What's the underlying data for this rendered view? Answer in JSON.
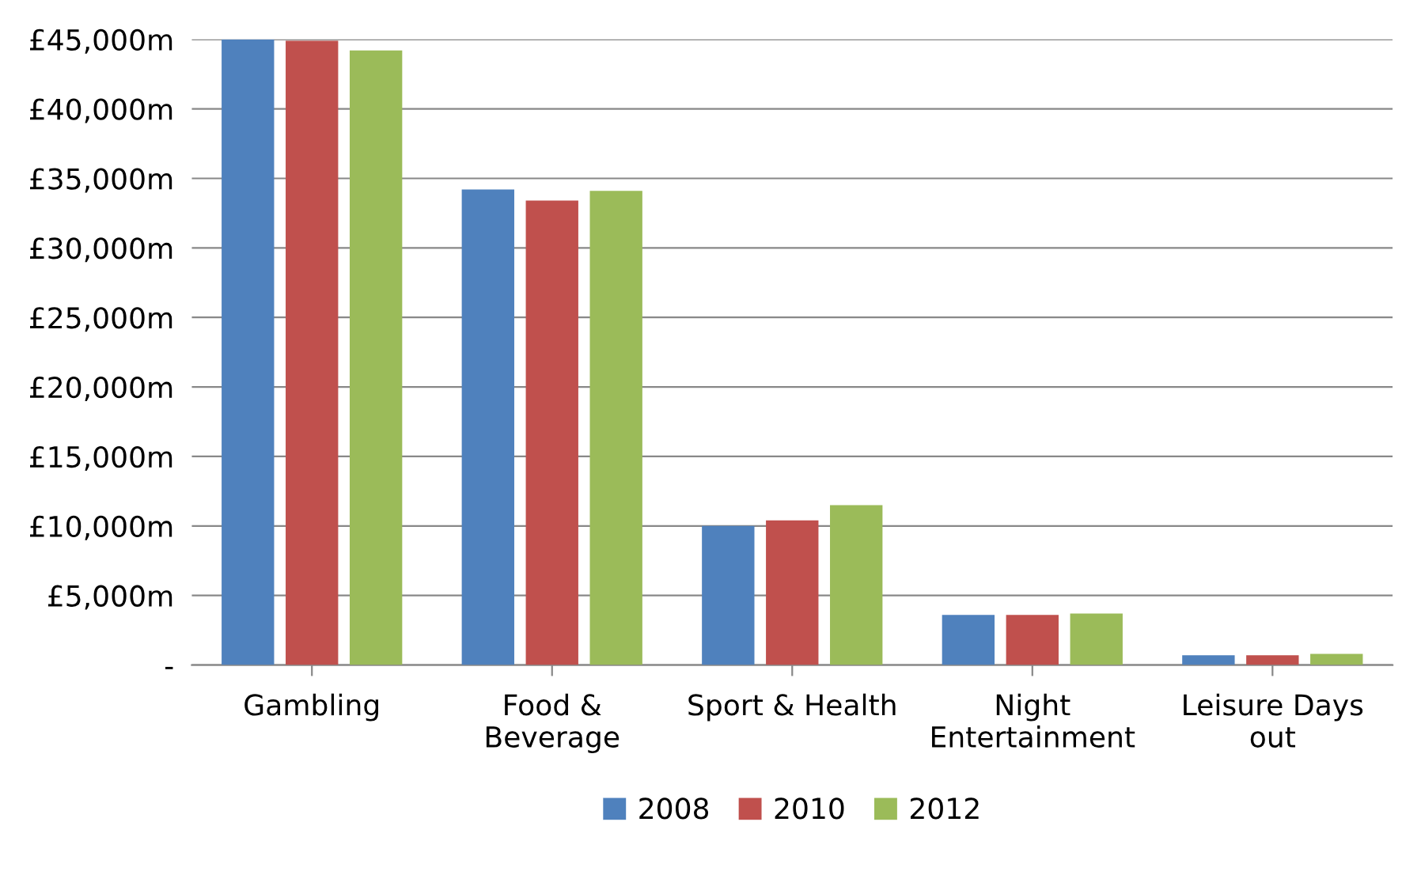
{
  "chart_data": {
    "type": "bar",
    "categories": [
      "Gambling",
      "Food &\nBeverage",
      "Sport & Health",
      "Night\nEntertainment",
      "Leisure Days\nout"
    ],
    "series": [
      {
        "name": "2008",
        "color": "#4f81bd",
        "values": [
          45000,
          34200,
          10000,
          3600,
          700
        ]
      },
      {
        "name": "2010",
        "color": "#c0504d",
        "values": [
          44900,
          33400,
          10400,
          3600,
          700
        ]
      },
      {
        "name": "2012",
        "color": "#9bbb59",
        "values": [
          44200,
          34100,
          11500,
          3700,
          800
        ]
      }
    ],
    "ylim": [
      0,
      45000
    ],
    "yticks": [
      {
        "value": 0,
        "label": "-"
      },
      {
        "value": 5000,
        "label": "£5,000m"
      },
      {
        "value": 10000,
        "label": "£10,000m"
      },
      {
        "value": 15000,
        "label": "£15,000m"
      },
      {
        "value": 20000,
        "label": "£20,000m"
      },
      {
        "value": 25000,
        "label": "£25,000m"
      },
      {
        "value": 30000,
        "label": "£30,000m"
      },
      {
        "value": 35000,
        "label": "£35,000m"
      },
      {
        "value": 40000,
        "label": "£40,000m"
      },
      {
        "value": 45000,
        "label": "£45,000m"
      }
    ],
    "grid": "y",
    "legend": "bottom"
  }
}
